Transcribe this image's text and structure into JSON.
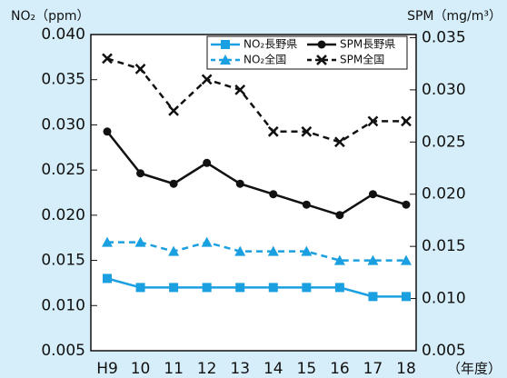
{
  "chart_data": {
    "type": "line",
    "y_label": "NO₂（ppm）",
    "y2_label": "SPM（mg/m³）",
    "x_label": "（年度）",
    "categories": [
      "H9",
      "10",
      "11",
      "12",
      "13",
      "14",
      "15",
      "16",
      "17",
      "18"
    ],
    "ylim": [
      0.005,
      0.04
    ],
    "yticks": [
      0.005,
      {
        "value": 0.01,
        "label": "0.010"
      },
      0.015,
      {
        "value": 0.02,
        "label": "0.020"
      },
      0.025,
      {
        "value": 0.03,
        "label": "0.030"
      },
      0.035,
      {
        "value": 0.04,
        "label": "0.040"
      }
    ],
    "y2lim": [
      0.005,
      0.0353
    ],
    "y2ticks": [
      0.005,
      {
        "value": 0.01,
        "label": "0.010"
      },
      0.015,
      {
        "value": 0.02,
        "label": "0.020"
      },
      0.025,
      {
        "value": 0.03,
        "label": "0.030"
      },
      0.035
    ],
    "series": [
      {
        "name": "NO₂長野県",
        "color": "#1aa0e0",
        "dashed": false,
        "marker": "square",
        "values": [
          0.013,
          0.012,
          0.012,
          0.012,
          0.012,
          0.012,
          0.012,
          0.012,
          0.011,
          0.011
        ]
      },
      {
        "name": "SPM長野県",
        "color": "#111111",
        "dashed": false,
        "marker": "circle",
        "axis": "y2",
        "values": [
          0.026,
          0.022,
          0.021,
          0.023,
          0.021,
          0.02,
          0.019,
          0.018,
          0.02,
          0.019
        ]
      },
      {
        "name": "NO₂全国",
        "color": "#1aa0e0",
        "dashed": true,
        "marker": "triangle",
        "values": [
          0.017,
          0.017,
          0.016,
          0.017,
          0.016,
          0.016,
          0.016,
          0.015,
          0.015,
          0.015
        ]
      },
      {
        "name": "SPM全国",
        "color": "#111111",
        "dashed": true,
        "marker": "x",
        "axis": "y2",
        "values": [
          0.033,
          0.032,
          0.028,
          0.031,
          0.03,
          0.026,
          0.026,
          0.025,
          0.027,
          0.027
        ]
      }
    ]
  }
}
